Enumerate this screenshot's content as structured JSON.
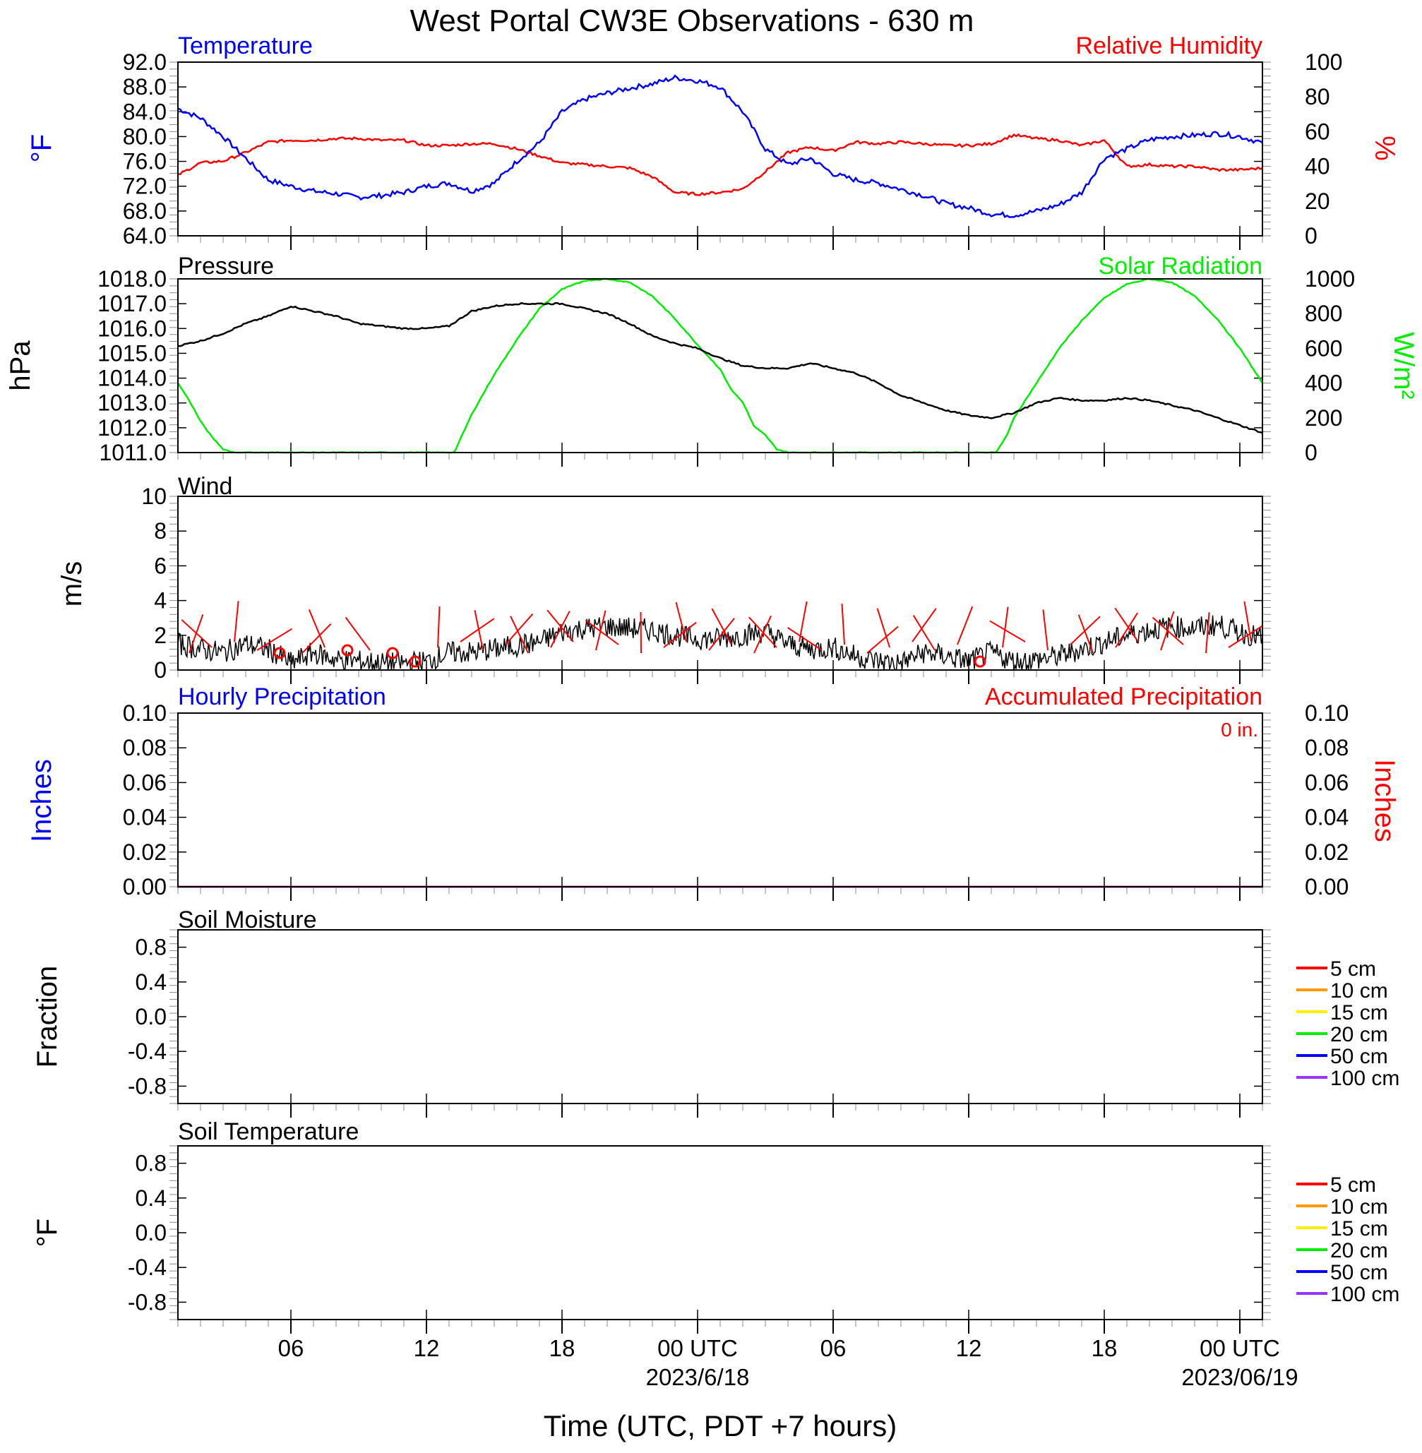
{
  "title": "West Portal CW3E Observations - 630 m",
  "xaxis": {
    "title": "Time (UTC, PDT +7 hours)",
    "ticks": [
      {
        "hour": 6,
        "label": "06"
      },
      {
        "hour": 12,
        "label": "12"
      },
      {
        "hour": 18,
        "label": "18"
      },
      {
        "hour": 24,
        "label": "00 UTC",
        "sub": "2023/6/18"
      },
      {
        "hour": 30,
        "label": "06"
      },
      {
        "hour": 36,
        "label": "12"
      },
      {
        "hour": 42,
        "label": "18"
      },
      {
        "hour": 48,
        "label": "00 UTC",
        "sub": "2023/06/19"
      }
    ],
    "range": [
      1,
      49
    ]
  },
  "colors": {
    "temperature": "#0000ff",
    "humidity": "#ff0000",
    "pressure": "#000000",
    "solar": "#00ee00",
    "wind": "#000000",
    "barb": "#ff0000",
    "precip_hourly": "#0000ff",
    "precip_accum": "#ff0000",
    "soil_5": "#ff0000",
    "soil_10": "#ff9900",
    "soil_15": "#ffee00",
    "soil_20": "#00ee00",
    "soil_50": "#0000ff",
    "soil_100": "#9933ff"
  },
  "panels": {
    "temp_rh": {
      "left_title": "Temperature",
      "right_title": "Relative Humidity",
      "left_ylabel": "°F",
      "right_ylabel": "%",
      "left_ticks": [
        "64.0",
        "68.0",
        "72.0",
        "76.0",
        "80.0",
        "84.0",
        "88.0",
        "92.0"
      ],
      "right_ticks": [
        "0",
        "20",
        "40",
        "60",
        "80",
        "100"
      ]
    },
    "pressure_solar": {
      "left_title": "Pressure",
      "right_title": "Solar Radiation",
      "left_ylabel": "hPa",
      "right_ylabel": "W/m²",
      "left_ticks": [
        "1011.0",
        "1012.0",
        "1013.0",
        "1014.0",
        "1015.0",
        "1016.0",
        "1017.0",
        "1018.0"
      ],
      "right_ticks": [
        "0",
        "200",
        "400",
        "600",
        "800",
        "1000"
      ]
    },
    "wind": {
      "left_title": "Wind",
      "left_ylabel": "m/s",
      "left_ticks": [
        "0",
        "2",
        "4",
        "6",
        "8",
        "10"
      ]
    },
    "precip": {
      "left_title": "Hourly Precipitation",
      "right_title": "Accumulated Precipitation",
      "accum_text": "0 in.",
      "left_ylabel": "Inches",
      "right_ylabel": "Inches",
      "left_ticks": [
        "0.00",
        "0.02",
        "0.04",
        "0.06",
        "0.08",
        "0.10"
      ],
      "right_ticks": [
        "0.00",
        "0.02",
        "0.04",
        "0.06",
        "0.08",
        "0.10"
      ]
    },
    "soil_moisture": {
      "left_title": "Soil Moisture",
      "left_ylabel": "Fraction",
      "left_ticks": [
        "-0.8",
        "-0.4",
        "0.0",
        "0.4",
        "0.8"
      ],
      "legend": [
        "5 cm",
        "10 cm",
        "15 cm",
        "20 cm",
        "50 cm",
        "100 cm"
      ]
    },
    "soil_temp": {
      "left_title": "Soil Temperature",
      "left_ylabel": "°F",
      "left_ticks": [
        "-0.8",
        "-0.4",
        "0.0",
        "0.4",
        "0.8"
      ],
      "legend": [
        "5 cm",
        "10 cm",
        "15 cm",
        "20 cm",
        "50 cm",
        "100 cm"
      ]
    }
  },
  "chart_data": [
    {
      "type": "line",
      "title": "Temperature",
      "ylabel": "°F",
      "ylim": [
        64,
        92
      ],
      "series": [
        {
          "name": "Temperature",
          "x": [
            1,
            2,
            3,
            4,
            5,
            6,
            7,
            8,
            9,
            10,
            11,
            12,
            13,
            14,
            15,
            16,
            17,
            18,
            19,
            20,
            21,
            22,
            23,
            24,
            25,
            26,
            27,
            28,
            29,
            30,
            31,
            32,
            33,
            34,
            35,
            36,
            37,
            38,
            39,
            40,
            41,
            42,
            43,
            44,
            45,
            46,
            47,
            48,
            49
          ],
          "values": [
            84.5,
            83.0,
            80.0,
            76.5,
            73.0,
            72.0,
            71.2,
            70.8,
            70.2,
            70.5,
            71.0,
            72.0,
            72.5,
            71.2,
            72.5,
            76.0,
            79.0,
            84.0,
            86.0,
            87.0,
            87.8,
            88.5,
            89.5,
            89.0,
            88.0,
            84.0,
            78.0,
            75.5,
            76.5,
            74.0,
            73.0,
            72.5,
            71.5,
            70.5,
            69.2,
            68.5,
            67.5,
            67.3,
            68.0,
            69.0,
            71.0,
            76.5,
            78.0,
            79.5,
            80.0,
            80.2,
            80.5,
            80.0,
            79.0
          ]
        }
      ]
    },
    {
      "type": "line",
      "title": "Relative Humidity",
      "ylabel": "%",
      "ylim": [
        0,
        100
      ],
      "series": [
        {
          "name": "Relative Humidity",
          "x": [
            1,
            2,
            3,
            4,
            5,
            6,
            7,
            8,
            9,
            10,
            11,
            12,
            13,
            14,
            15,
            16,
            17,
            18,
            19,
            20,
            21,
            22,
            23,
            24,
            25,
            26,
            27,
            28,
            29,
            30,
            31,
            32,
            33,
            34,
            35,
            36,
            37,
            38,
            39,
            40,
            41,
            42,
            43,
            44,
            45,
            46,
            47,
            48,
            49
          ],
          "values": [
            35,
            42,
            43,
            48,
            54,
            55,
            55,
            56,
            56,
            55,
            55,
            52,
            52,
            53,
            53,
            50,
            46,
            42,
            41,
            40,
            39,
            34,
            25,
            24,
            25,
            27,
            37,
            48,
            51,
            49,
            54,
            53,
            54,
            53,
            52,
            52,
            53,
            58,
            56,
            55,
            52,
            55,
            40,
            41,
            40,
            40,
            38,
            38,
            39
          ]
        }
      ]
    },
    {
      "type": "line",
      "title": "Pressure",
      "ylabel": "hPa",
      "ylim": [
        1011,
        1018
      ],
      "series": [
        {
          "name": "Pressure",
          "x": [
            1,
            2,
            3,
            4,
            5,
            6,
            7,
            8,
            9,
            10,
            11,
            12,
            13,
            14,
            15,
            16,
            17,
            18,
            19,
            20,
            21,
            22,
            23,
            24,
            25,
            26,
            27,
            28,
            29,
            30,
            31,
            32,
            33,
            34,
            35,
            36,
            37,
            38,
            39,
            40,
            41,
            42,
            43,
            44,
            45,
            46,
            47,
            48,
            49
          ],
          "values": [
            1015.3,
            1015.5,
            1015.8,
            1016.2,
            1016.5,
            1016.9,
            1016.7,
            1016.5,
            1016.2,
            1016.1,
            1016.0,
            1016.0,
            1016.1,
            1016.7,
            1016.9,
            1017.0,
            1017.0,
            1017.0,
            1016.8,
            1016.6,
            1016.2,
            1015.7,
            1015.4,
            1015.2,
            1014.8,
            1014.5,
            1014.4,
            1014.4,
            1014.6,
            1014.4,
            1014.2,
            1013.8,
            1013.3,
            1013.0,
            1012.7,
            1012.5,
            1012.4,
            1012.6,
            1013.0,
            1013.2,
            1013.1,
            1013.1,
            1013.2,
            1013.1,
            1012.9,
            1012.7,
            1012.4,
            1012.1,
            1011.8
          ]
        }
      ]
    },
    {
      "type": "line",
      "title": "Solar Radiation",
      "ylabel": "W/m²",
      "ylim": [
        0,
        1000
      ],
      "series": [
        {
          "name": "Solar Radiation",
          "x": [
            1,
            1.5,
            2,
            2.5,
            3,
            3.5,
            4,
            13.2,
            13.3,
            14,
            15,
            16,
            17,
            18,
            19,
            20,
            21,
            22,
            23,
            24,
            25,
            25.5,
            26,
            26.5,
            27,
            27.5,
            28,
            28.5,
            37.2,
            37.3,
            37.7,
            38,
            38.5,
            39,
            39.5,
            40,
            41,
            42,
            43,
            44,
            45,
            46,
            47,
            48,
            49
          ],
          "values": [
            400,
            300,
            180,
            90,
            20,
            0,
            0,
            0,
            20,
            220,
            450,
            650,
            830,
            940,
            990,
            1000,
            980,
            900,
            770,
            620,
            480,
            360,
            290,
            150,
            100,
            20,
            0,
            0,
            0,
            20,
            100,
            200,
            300,
            400,
            500,
            600,
            760,
            890,
            970,
            1000,
            980,
            900,
            770,
            600,
            400
          ]
        }
      ]
    },
    {
      "type": "line",
      "title": "Wind",
      "ylabel": "m/s",
      "ylim": [
        0,
        10
      ],
      "series": [
        {
          "name": "Wind",
          "x": [
            1,
            2,
            3,
            4,
            5,
            6,
            7,
            8,
            9,
            10,
            11,
            12,
            13,
            14,
            15,
            16,
            17,
            18,
            19,
            20,
            21,
            22,
            23,
            24,
            25,
            26,
            27,
            28,
            29,
            30,
            31,
            32,
            33,
            34,
            35,
            36,
            37,
            38,
            39,
            40,
            41,
            42,
            43,
            44,
            45,
            46,
            47,
            48,
            49
          ],
          "values": [
            1.5,
            1.2,
            1.0,
            1.5,
            1.2,
            0.4,
            1.0,
            0.6,
            0.5,
            0.4,
            0.4,
            0.5,
            1.0,
            1.0,
            1.2,
            1.4,
            1.6,
            2.2,
            2.4,
            2.5,
            2.4,
            2.3,
            2.0,
            1.8,
            1.8,
            2.0,
            2.2,
            1.5,
            1.2,
            1.3,
            0.8,
            0.5,
            0.4,
            1.0,
            0.8,
            0.5,
            1.0,
            0.5,
            0.6,
            0.8,
            1.2,
            1.6,
            2.0,
            2.3,
            2.5,
            2.4,
            2.6,
            2.2,
            1.8
          ]
        }
      ]
    },
    {
      "type": "line",
      "title": "Hourly Precipitation",
      "ylabel": "Inches",
      "ylim": [
        0,
        0.1
      ],
      "series": [
        {
          "name": "Hourly Precipitation",
          "x": [
            1,
            49
          ],
          "values": [
            0,
            0
          ]
        }
      ]
    },
    {
      "type": "line",
      "title": "Accumulated Precipitation",
      "ylabel": "Inches",
      "ylim": [
        0,
        0.1
      ],
      "series": [
        {
          "name": "Accumulated Precipitation",
          "x": [
            1,
            49
          ],
          "values": [
            0,
            0
          ]
        }
      ]
    },
    {
      "type": "line",
      "title": "Soil Moisture",
      "ylabel": "Fraction",
      "ylim": [
        -1,
        1
      ],
      "series": []
    },
    {
      "type": "line",
      "title": "Soil Temperature",
      "ylabel": "°F",
      "ylim": [
        -1,
        1
      ],
      "series": []
    }
  ]
}
